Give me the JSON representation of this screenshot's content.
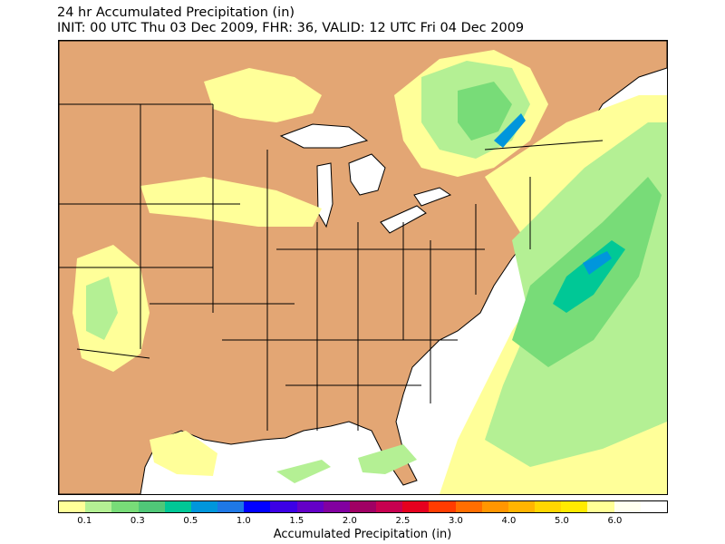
{
  "title": {
    "line1": "24 hr Accumulated Precipitation (in)",
    "line2": "INIT: 00 UTC Thu 03 Dec 2009, FHR: 36, VALID: 12 UTC Fri 04 Dec 2009"
  },
  "map": {
    "region": "Eastern United States",
    "land_color": "#e3a674",
    "water_color": "#ffffff",
    "border_color": "#000000"
  },
  "colorbar": {
    "label": "Accumulated Precipitation (in)",
    "colors": [
      "#ffff99",
      "#b4f094",
      "#78dc78",
      "#50c878",
      "#00c896",
      "#0096dc",
      "#1e78e6",
      "#0000ff",
      "#3c00e6",
      "#6400c8",
      "#8200a0",
      "#a00064",
      "#c80050",
      "#e6001e",
      "#ff3c00",
      "#ff6e00",
      "#ff9600",
      "#ffb400",
      "#ffd700",
      "#ffeb00",
      "#ffff96",
      "#fffff0",
      "#ffffff"
    ],
    "ticks": [
      {
        "label": "0.1",
        "boundary": 1
      },
      {
        "label": "0.3",
        "boundary": 3
      },
      {
        "label": "0.5",
        "boundary": 5
      },
      {
        "label": "1.0",
        "boundary": 7
      },
      {
        "label": "1.5",
        "boundary": 9
      },
      {
        "label": "2.0",
        "boundary": 11
      },
      {
        "label": "2.5",
        "boundary": 13
      },
      {
        "label": "3.0",
        "boundary": 15
      },
      {
        "label": "4.0",
        "boundary": 17
      },
      {
        "label": "5.0",
        "boundary": 19
      },
      {
        "label": "6.0",
        "boundary": 21
      }
    ]
  }
}
